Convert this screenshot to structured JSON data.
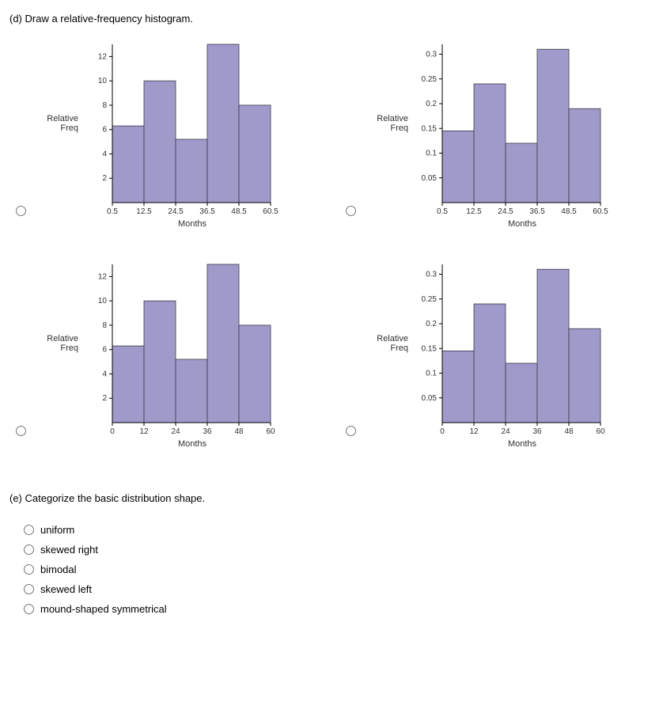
{
  "question_d": {
    "prompt": "(d) Draw a relative-frequency histogram.",
    "charts": [
      {
        "ylabel": "Relative Freq",
        "xlabel": "Months",
        "bar_color": "#9f9ac9",
        "bar_stroke": "#3a3a4a",
        "axis_color": "#000000",
        "tick_color": "#333333",
        "label_fontsize": 11,
        "tick_fontsize": 10,
        "x_ticks": [
          "0.5",
          "12.5",
          "24.5",
          "36.5",
          "48.5",
          "60.5"
        ],
        "y_ticks": [
          2,
          4,
          6,
          8,
          10,
          12
        ],
        "y_max": 13,
        "values": [
          6.3,
          10,
          5.2,
          13,
          8
        ]
      },
      {
        "ylabel": "Relative Freq",
        "xlabel": "Months",
        "bar_color": "#9f9ac9",
        "bar_stroke": "#3a3a4a",
        "axis_color": "#000000",
        "tick_color": "#333333",
        "label_fontsize": 11,
        "tick_fontsize": 10,
        "x_ticks": [
          "0.5",
          "12.5",
          "24.5",
          "36.5",
          "48.5",
          "60.5"
        ],
        "y_ticks": [
          0.05,
          0.1,
          0.15,
          0.2,
          0.25,
          0.3
        ],
        "y_max": 0.32,
        "values": [
          0.145,
          0.24,
          0.12,
          0.31,
          0.19
        ]
      },
      {
        "ylabel": "Relative Freq",
        "xlabel": "Months",
        "bar_color": "#9f9ac9",
        "bar_stroke": "#3a3a4a",
        "axis_color": "#000000",
        "tick_color": "#333333",
        "label_fontsize": 11,
        "tick_fontsize": 10,
        "x_ticks": [
          "0",
          "12",
          "24",
          "36",
          "48",
          "60"
        ],
        "y_ticks": [
          2,
          4,
          6,
          8,
          10,
          12
        ],
        "y_max": 13,
        "values": [
          6.3,
          10,
          5.2,
          13,
          8
        ]
      },
      {
        "ylabel": "Relative Freq",
        "xlabel": "Months",
        "bar_color": "#9f9ac9",
        "bar_stroke": "#3a3a4a",
        "axis_color": "#000000",
        "tick_color": "#333333",
        "label_fontsize": 11,
        "tick_fontsize": 10,
        "x_ticks": [
          "0",
          "12",
          "24",
          "36",
          "48",
          "60"
        ],
        "y_ticks": [
          0.05,
          0.1,
          0.15,
          0.2,
          0.25,
          0.3
        ],
        "y_max": 0.32,
        "values": [
          0.145,
          0.24,
          0.12,
          0.31,
          0.19
        ]
      }
    ]
  },
  "question_e": {
    "prompt": "(e) Categorize the basic distribution shape.",
    "options": [
      "uniform",
      "skewed right",
      "bimodal",
      "skewed left",
      "mound-shaped symmetrical"
    ]
  }
}
